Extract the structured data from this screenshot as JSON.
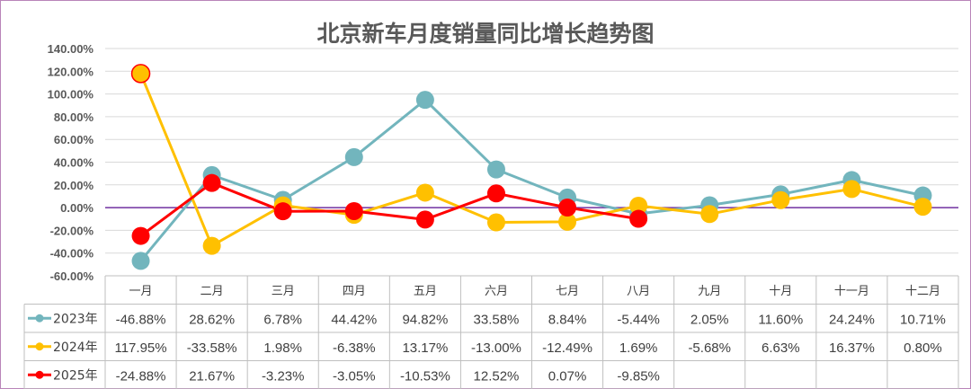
{
  "chart_data": {
    "type": "line",
    "title": "北京新车月度销量同比增长趋势图",
    "categories": [
      "一月",
      "二月",
      "三月",
      "四月",
      "五月",
      "六月",
      "七月",
      "八月",
      "九月",
      "十月",
      "十一月",
      "十二月"
    ],
    "ylim": [
      -60,
      140
    ],
    "yticks": [
      -60,
      -40,
      -20,
      0,
      20,
      40,
      60,
      80,
      100,
      120,
      140
    ],
    "ytick_labels": [
      "-60.00%",
      "-40.00%",
      "-20.00%",
      "0.00%",
      "20.00%",
      "40.00%",
      "60.00%",
      "80.00%",
      "100.00%",
      "120.00%",
      "140.00%"
    ],
    "grid": true,
    "legend_placement": "data-table-left",
    "series": [
      {
        "name": "2023年",
        "color": "#72b5bd",
        "values": [
          -46.88,
          28.62,
          6.78,
          44.42,
          94.82,
          33.58,
          8.84,
          -5.44,
          2.05,
          11.6,
          24.24,
          10.71
        ],
        "labels": [
          "-46.88%",
          "28.62%",
          "6.78%",
          "44.42%",
          "94.82%",
          "33.58%",
          "8.84%",
          "-5.44%",
          "2.05%",
          "11.60%",
          "24.24%",
          "10.71%"
        ]
      },
      {
        "name": "2024年",
        "color": "#ffc000",
        "values": [
          117.95,
          -33.58,
          1.98,
          -6.38,
          13.17,
          -13.0,
          -12.49,
          1.69,
          -5.68,
          6.63,
          16.37,
          0.8
        ],
        "labels": [
          "117.95%",
          "-33.58%",
          "1.98%",
          "-6.38%",
          "13.17%",
          "-13.00%",
          "-12.49%",
          "1.69%",
          "-5.68%",
          "6.63%",
          "16.37%",
          "0.80%"
        ]
      },
      {
        "name": "2025年",
        "color": "#ff0000",
        "values": [
          -24.88,
          21.67,
          -3.23,
          -3.05,
          -10.53,
          12.52,
          0.07,
          -9.85,
          null,
          null,
          null,
          null
        ],
        "labels": [
          "-24.88%",
          "21.67%",
          "-3.23%",
          "-3.05%",
          "-10.53%",
          "12.52%",
          "0.07%",
          "-9.85%",
          "",
          "",
          "",
          ""
        ]
      }
    ]
  },
  "colors": {
    "frame": "#b985b9",
    "grid": "#d9d9d9",
    "zero_line": "#7030a0",
    "title": "#595959"
  }
}
